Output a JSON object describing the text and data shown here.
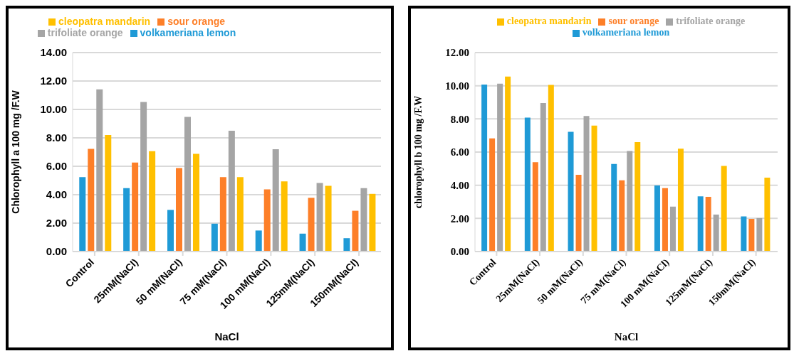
{
  "chart_data": [
    {
      "type": "bar",
      "xlabel": "NaCl",
      "ylabel": "Chlorophyll a 100 mg /F.W",
      "categories": [
        "Control",
        "25mM(NaCl)",
        "50 mM(NaCl)",
        "75 mM(NaCl)",
        "100 mM(NaCl)",
        "125mM(NaCl)",
        "150mM(NaCl)"
      ],
      "series": [
        {
          "name": "volkameriana lemon",
          "color": "#1f9ad6",
          "values": [
            5.24,
            4.46,
            2.93,
            1.96,
            1.48,
            1.26,
            0.94
          ]
        },
        {
          "name": "sour orange",
          "color": "#fd7f28",
          "values": [
            7.22,
            6.26,
            5.87,
            5.24,
            4.37,
            3.78,
            2.87
          ]
        },
        {
          "name": "trifoliate orange",
          "color": "#a5a5a5",
          "values": [
            11.41,
            10.52,
            9.48,
            8.5,
            7.2,
            4.83,
            4.46
          ]
        },
        {
          "name": "cleopatra mandarin",
          "color": "#ffc000",
          "values": [
            8.2,
            7.06,
            6.87,
            5.24,
            4.94,
            4.63,
            4.06
          ]
        }
      ],
      "ylim": [
        0,
        14
      ],
      "yticks": [
        {
          "value": 0,
          "label": "0.00"
        },
        {
          "value": 2,
          "label": "2.00"
        },
        {
          "value": 4,
          "label": "4.00"
        },
        {
          "value": 6,
          "label": "6.00"
        },
        {
          "value": 8,
          "label": "8.00"
        },
        {
          "value": 10,
          "label": "10.00"
        },
        {
          "value": 12,
          "label": "12.00"
        },
        {
          "value": 14,
          "label": "14.00"
        }
      ],
      "grid": "y",
      "legend": "top"
    },
    {
      "type": "bar",
      "xlabel": "NaCl",
      "ylabel": "chlorophyll b 100 mg /F.W",
      "categories": [
        "Control",
        "25mM(NaCl)",
        "50 mM(NaCl)",
        "75 mM(NaCl)",
        "100 mM(NaCl)",
        "125mM(NaCl)",
        "150mM(NaCl)"
      ],
      "series": [
        {
          "name": "volkameriana lemon",
          "color": "#1f9ad6",
          "values": [
            10.07,
            8.08,
            7.22,
            5.28,
            3.99,
            3.33,
            2.12
          ]
        },
        {
          "name": "sour orange",
          "color": "#fd7f28",
          "values": [
            6.82,
            5.39,
            4.63,
            4.3,
            3.83,
            3.3,
            1.97
          ]
        },
        {
          "name": "trifoliate orange",
          "color": "#a5a5a5",
          "values": [
            10.12,
            8.96,
            8.17,
            6.06,
            2.71,
            2.23,
            2.02
          ]
        },
        {
          "name": "cleopatra mandarin",
          "color": "#ffc000",
          "values": [
            10.55,
            10.05,
            7.6,
            6.6,
            6.2,
            5.16,
            4.46
          ]
        }
      ],
      "ylim": [
        0,
        12
      ],
      "yticks": [
        {
          "value": 0,
          "label": "0.00"
        },
        {
          "value": 2,
          "label": "2.00"
        },
        {
          "value": 4,
          "label": "4.00"
        },
        {
          "value": 6,
          "label": "6.00"
        },
        {
          "value": 8,
          "label": "8.00"
        },
        {
          "value": 10,
          "label": "10.00"
        },
        {
          "value": 12,
          "label": "12.00"
        }
      ],
      "grid": "y",
      "legend": "top"
    }
  ]
}
